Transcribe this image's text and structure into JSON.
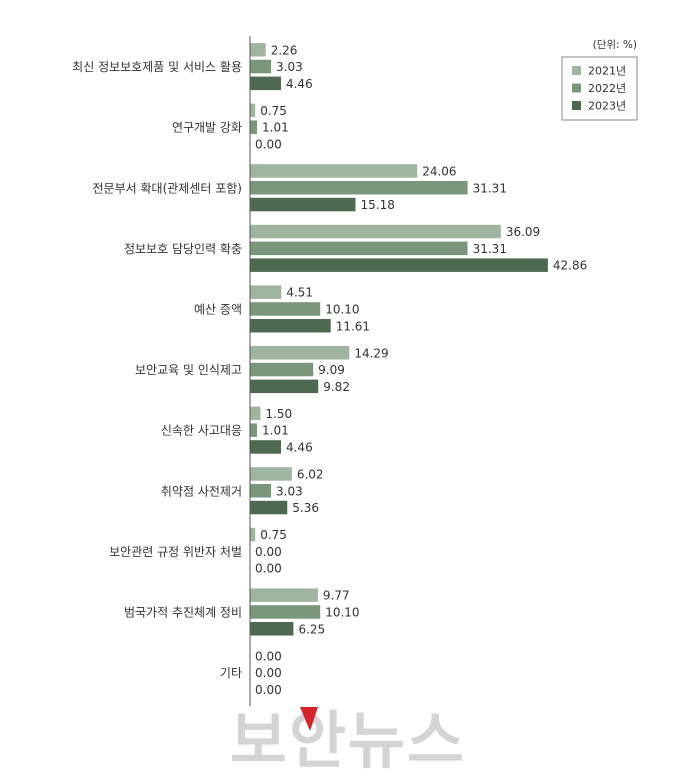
{
  "chart_data": {
    "type": "bar",
    "orientation": "horizontal",
    "unit_label": "(단위: %)",
    "categories": [
      "최신 정보보호제품 및 서비스 활용",
      "연구개발 강화",
      "전문부서 확대(관제센터 포함)",
      "정보보호 담당인력 확충",
      "예산 증액",
      "보안교육 및 인식제고",
      "신속한 사고대응",
      "취약점 사전제거",
      "보안관련 규정 위반자 처벌",
      "범국가적 추진체계 정비",
      "기타"
    ],
    "series": [
      {
        "name": "2021년",
        "color": "#9fb59f",
        "values": [
          2.26,
          0.75,
          24.06,
          36.09,
          4.51,
          14.29,
          1.5,
          6.02,
          0.75,
          9.77,
          0.0
        ]
      },
      {
        "name": "2022년",
        "color": "#7a977c",
        "values": [
          3.03,
          1.01,
          31.31,
          31.31,
          10.1,
          9.09,
          1.01,
          3.03,
          0.0,
          10.1,
          0.0
        ]
      },
      {
        "name": "2023년",
        "color": "#4d6a51",
        "values": [
          4.46,
          0.0,
          15.18,
          42.86,
          11.61,
          9.82,
          4.46,
          5.36,
          0.0,
          6.25,
          0.0
        ]
      }
    ],
    "legend_position": "top-right",
    "grid": false
  },
  "watermark": "보안뉴스"
}
